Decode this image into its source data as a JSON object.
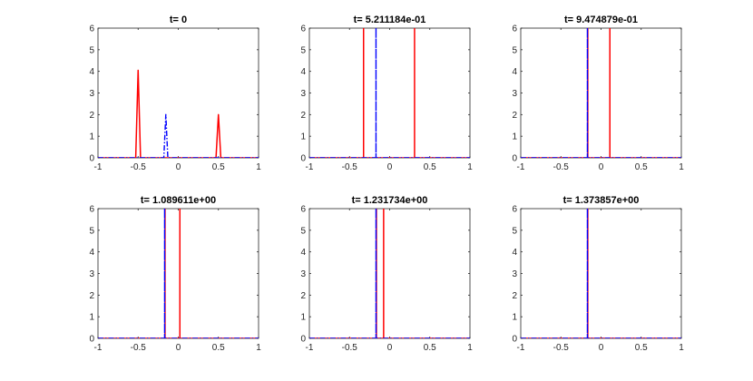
{
  "figure": {
    "layout": "2x3 grid of subplots",
    "colors": {
      "red_series": "#ff0000",
      "blue_series": "#0000ff",
      "axes": "#262626"
    }
  },
  "chart_data": [
    {
      "type": "line",
      "title": "t= 0",
      "xlim": [
        -1,
        1
      ],
      "ylim": [
        0,
        6
      ],
      "xticks": [
        "-1",
        "-0.5",
        "0",
        "0.5",
        "1"
      ],
      "yticks": [
        "0",
        "1",
        "2",
        "3",
        "4",
        "5",
        "6"
      ],
      "grid": false,
      "series": [
        {
          "style": "solid",
          "color": "#ff0000",
          "x": [
            -1,
            -0.53,
            -0.5,
            -0.47,
            0.47,
            0.5,
            0.53,
            1
          ],
          "y": [
            0,
            0,
            4.05,
            0,
            0,
            2.0,
            0,
            0
          ]
        },
        {
          "style": "dash-dot",
          "color": "#0000ff",
          "x": [
            -1,
            -0.18,
            -0.155,
            -0.13,
            1
          ],
          "y": [
            0,
            0,
            2.0,
            0,
            0
          ]
        }
      ]
    },
    {
      "type": "line",
      "title": "t= 5.211184e-01",
      "xlim": [
        -1,
        1
      ],
      "ylim": [
        0,
        6
      ],
      "xticks": [
        "-1",
        "-0.5",
        "0",
        "0.5",
        "1"
      ],
      "yticks": [
        "0",
        "1",
        "2",
        "3",
        "4",
        "5",
        "6"
      ],
      "grid": false,
      "series": [
        {
          "style": "solid",
          "color": "#ff0000",
          "x": [
            -1,
            -0.325,
            -0.325,
            -0.325,
            0.31,
            0.31,
            0.31,
            1
          ],
          "y": [
            0,
            0,
            6.5,
            0,
            0,
            6.5,
            0,
            0
          ]
        },
        {
          "style": "dash-dot",
          "color": "#0000ff",
          "x": [
            -1,
            -0.17,
            -0.17,
            -0.17,
            1
          ],
          "y": [
            0,
            0,
            6.5,
            0,
            0
          ]
        }
      ]
    },
    {
      "type": "line",
      "title": "t= 9.474879e-01",
      "xlim": [
        -1,
        1
      ],
      "ylim": [
        0,
        6
      ],
      "xticks": [
        "-1",
        "-0.5",
        "0",
        "0.5",
        "1"
      ],
      "yticks": [
        "0",
        "1",
        "2",
        "3",
        "4",
        "5",
        "6"
      ],
      "grid": false,
      "series": [
        {
          "style": "solid",
          "color": "#ff0000",
          "x": [
            -1,
            -0.165,
            -0.165,
            -0.165,
            0.11,
            0.11,
            0.11,
            1
          ],
          "y": [
            0,
            0,
            6.5,
            0,
            0,
            6.5,
            0,
            0
          ]
        },
        {
          "style": "dash-dot",
          "color": "#0000ff",
          "x": [
            -1,
            -0.17,
            -0.17,
            -0.17,
            1
          ],
          "y": [
            0,
            0,
            6.5,
            0,
            0
          ]
        }
      ]
    },
    {
      "type": "line",
      "title": "t= 1.089611e+00",
      "xlim": [
        -1,
        1
      ],
      "ylim": [
        0,
        6
      ],
      "xticks": [
        "-1",
        "-0.5",
        "0",
        "0.5",
        "1"
      ],
      "yticks": [
        "0",
        "1",
        "2",
        "3",
        "4",
        "5",
        "6"
      ],
      "grid": false,
      "series": [
        {
          "style": "solid",
          "color": "#ff0000",
          "x": [
            -1,
            -0.165,
            -0.165,
            -0.165,
            0.02,
            0.02,
            0.02,
            1
          ],
          "y": [
            0,
            0,
            6.5,
            0,
            0,
            6.5,
            0,
            0
          ]
        },
        {
          "style": "dash-dot",
          "color": "#0000ff",
          "x": [
            -1,
            -0.17,
            -0.17,
            -0.17,
            1
          ],
          "y": [
            0,
            0,
            6.5,
            0,
            0
          ]
        }
      ]
    },
    {
      "type": "line",
      "title": "t= 1.231734e+00",
      "xlim": [
        -1,
        1
      ],
      "ylim": [
        0,
        6
      ],
      "xticks": [
        "-1",
        "-0.5",
        "0",
        "0.5",
        "1"
      ],
      "yticks": [
        "0",
        "1",
        "2",
        "3",
        "4",
        "5",
        "6"
      ],
      "grid": false,
      "series": [
        {
          "style": "solid",
          "color": "#ff0000",
          "x": [
            -1,
            -0.165,
            -0.165,
            -0.165,
            -0.075,
            -0.075,
            -0.075,
            1
          ],
          "y": [
            0,
            0,
            6.5,
            0,
            0,
            6.5,
            0,
            0
          ]
        },
        {
          "style": "dash-dot",
          "color": "#0000ff",
          "x": [
            -1,
            -0.17,
            -0.17,
            -0.17,
            1
          ],
          "y": [
            0,
            0,
            6.5,
            0,
            0
          ]
        }
      ]
    },
    {
      "type": "line",
      "title": "t= 1.373857e+00",
      "xlim": [
        -1,
        1
      ],
      "ylim": [
        0,
        6
      ],
      "xticks": [
        "-1",
        "-0.5",
        "0",
        "0.5",
        "1"
      ],
      "yticks": [
        "0",
        "1",
        "2",
        "3",
        "4",
        "5",
        "6"
      ],
      "grid": false,
      "series": [
        {
          "style": "solid",
          "color": "#ff0000",
          "x": [
            -1,
            -0.165,
            -0.165,
            -0.165,
            1
          ],
          "y": [
            0,
            0,
            6.5,
            0,
            0
          ]
        },
        {
          "style": "dash-dot",
          "color": "#0000ff",
          "x": [
            -1,
            -0.17,
            -0.17,
            -0.17,
            1
          ],
          "y": [
            0,
            0,
            6.5,
            0,
            0
          ]
        }
      ]
    }
  ]
}
